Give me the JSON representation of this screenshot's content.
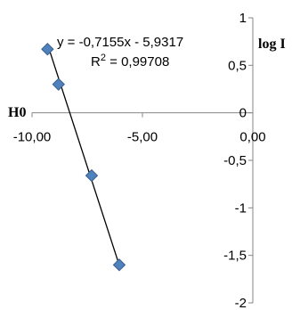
{
  "chart_data": {
    "type": "scatter",
    "xlabel": "H0",
    "ylabel": "log I",
    "xlim": [
      -10,
      0
    ],
    "ylim": [
      -2,
      1
    ],
    "x_ticks": [
      "-10,00",
      "-5,00",
      "0,00"
    ],
    "y_ticks": [
      "1",
      "0,5",
      "0",
      "-0,5",
      "-1",
      "-1,5",
      "-2"
    ],
    "grid": false,
    "legend": "none",
    "marker_color": "#4F81BD",
    "marker_edge_color": "#385D8A",
    "trendline_color": "#000000",
    "series": [
      {
        "x": [
          -9.3,
          -8.8,
          -7.3,
          -6.05
        ],
        "y": [
          0.67,
          0.3,
          -0.66,
          -1.6
        ]
      }
    ],
    "trendline": {
      "type": "linear",
      "slope": -0.7155,
      "intercept": -5.9317,
      "x_range": [
        -9.3,
        -6.1
      ]
    },
    "annotations": {
      "equation": "y = -0,7155x - 5,9317",
      "r2_prefix": "R",
      "r2_sup": "2",
      "r2_value": " = 0,99708"
    }
  }
}
